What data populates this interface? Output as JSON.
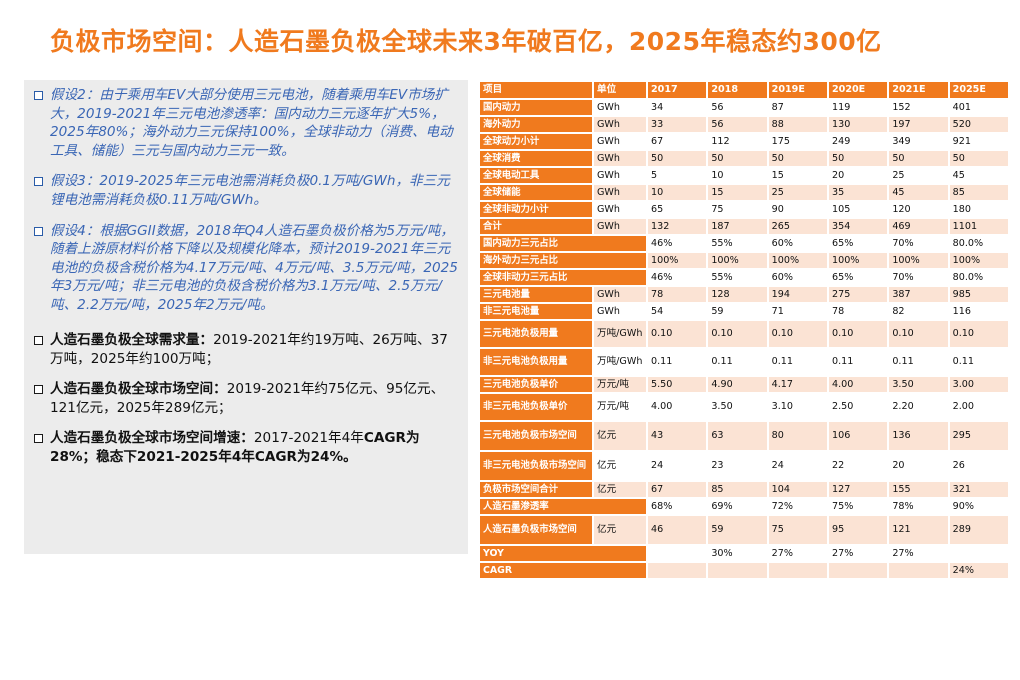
{
  "title": "负极市场空间：人造石墨负极全球未来3年破百亿，2025年稳态约300亿",
  "left": {
    "assumptions": [
      "假设2：由于乘用车EV大部分使用三元电池，随着乘用车EV市场扩大，2019-2021年三元电池渗透率：国内动力三元逐年扩大5%，2025年80%；海外动力三元保持100%，全球非动力（消费、电动工具、储能）三元与国内动力三元一致。",
      "假设3：2019-2025年三元电池需消耗负极0.1万吨/GWh，非三元锂电池需消耗负极0.11万吨/GWh。",
      "假设4：根据GGII数据，2018年Q4人造石墨负极价格为5万元/吨，随着上游原材料价格下降以及规模化降本，预计2019-2021年三元电池的负极含税价格为4.17万元/吨、4万元/吨、3.5万元/吨，2025年3万元/吨；非三元电池的负极含税价格为3.1万元/吨、2.5万元/吨、2.2万元/吨，2025年2万元/吨。"
    ],
    "conclusions": [
      {
        "bold": "人造石墨负极全球需求量：",
        "text": "2019-2021年约19万吨、26万吨、37万吨，2025年约100万吨；"
      },
      {
        "bold": "人造石墨负极全球市场空间：",
        "text": "2019-2021年约75亿元、95亿元、121亿元，2025年289亿元；"
      },
      {
        "bold": "人造石墨负极全球市场空间增速：",
        "text": "2017-2021年4年",
        "bold2": "CAGR为28%；稳态下2021-2025年4年CAGR为24%。"
      }
    ]
  },
  "table": {
    "headers": [
      "项目",
      "单位",
      "2017",
      "2018",
      "2019E",
      "2020E",
      "2021E",
      "2025E"
    ],
    "rows": [
      {
        "cells": [
          "国内动力",
          "GWh",
          "34",
          "56",
          "87",
          "119",
          "152",
          "401"
        ],
        "h": "norm"
      },
      {
        "cells": [
          "海外动力",
          "GWh",
          "33",
          "56",
          "88",
          "130",
          "197",
          "520"
        ],
        "h": "norm"
      },
      {
        "cells": [
          "全球动力小计",
          "GWh",
          "67",
          "112",
          "175",
          "249",
          "349",
          "921"
        ],
        "h": "norm"
      },
      {
        "cells": [
          "全球消费",
          "GWh",
          "50",
          "50",
          "50",
          "50",
          "50",
          "50"
        ],
        "h": "norm"
      },
      {
        "cells": [
          "全球电动工具",
          "GWh",
          "5",
          "10",
          "15",
          "20",
          "25",
          "45"
        ],
        "h": "norm"
      },
      {
        "cells": [
          "全球储能",
          "GWh",
          "10",
          "15",
          "25",
          "35",
          "45",
          "85"
        ],
        "h": "norm"
      },
      {
        "cells": [
          "全球非动力小计",
          "GWh",
          "65",
          "75",
          "90",
          "105",
          "120",
          "180"
        ],
        "h": "norm"
      },
      {
        "cells": [
          "合计",
          "GWh",
          "132",
          "187",
          "265",
          "354",
          "469",
          "1101"
        ],
        "h": "norm"
      },
      {
        "cells": [
          "国内动力三元占比",
          "",
          "46%",
          "55%",
          "60%",
          "65%",
          "70%",
          "80.0%"
        ],
        "h": "norm",
        "span": true
      },
      {
        "cells": [
          "海外动力三元占比",
          "",
          "100%",
          "100%",
          "100%",
          "100%",
          "100%",
          "100%"
        ],
        "h": "norm",
        "span": true
      },
      {
        "cells": [
          "全球非动力三元占比",
          "",
          "46%",
          "55%",
          "60%",
          "65%",
          "70%",
          "80.0%"
        ],
        "h": "norm",
        "span": true
      },
      {
        "cells": [
          "三元电池量",
          "GWh",
          "78",
          "128",
          "194",
          "275",
          "387",
          "985"
        ],
        "h": "norm"
      },
      {
        "cells": [
          "非三元电池量",
          "GWh",
          "54",
          "59",
          "71",
          "78",
          "82",
          "116"
        ],
        "h": "norm"
      },
      {
        "cells": [
          "三元电池负极用量",
          "万吨/GWh",
          "0.10",
          "0.10",
          "0.10",
          "0.10",
          "0.10",
          "0.10"
        ],
        "h": "tall"
      },
      {
        "cells": [
          "非三元电池负极用量",
          "万吨/GWh",
          "0.11",
          "0.11",
          "0.11",
          "0.11",
          "0.11",
          "0.11"
        ],
        "h": "tall"
      },
      {
        "cells": [
          "三元电池负极单价",
          "万元/吨",
          "5.50",
          "4.90",
          "4.17",
          "4.00",
          "3.50",
          "3.00"
        ],
        "h": "norm"
      },
      {
        "cells": [
          "非三元电池负极单价",
          "万元/吨",
          "4.00",
          "3.50",
          "3.10",
          "2.50",
          "2.20",
          "2.00"
        ],
        "h": "tall"
      },
      {
        "cells": [
          "三元电池负极市场空间",
          "亿元",
          "43",
          "63",
          "80",
          "106",
          "136",
          "295"
        ],
        "h": "mid"
      },
      {
        "cells": [
          "非三元电池负极市场空间",
          "亿元",
          "24",
          "23",
          "24",
          "22",
          "20",
          "26"
        ],
        "h": "mid"
      },
      {
        "cells": [
          "负极市场空间合计",
          "亿元",
          "67",
          "85",
          "104",
          "127",
          "155",
          "321"
        ],
        "h": "norm"
      },
      {
        "cells": [
          "人造石墨渗透率",
          "",
          "68%",
          "69%",
          "72%",
          "75%",
          "78%",
          "90%"
        ],
        "h": "norm",
        "span": true
      },
      {
        "cells": [
          "人造石墨负极市场空间",
          "亿元",
          "46",
          "59",
          "75",
          "95",
          "121",
          "289"
        ],
        "h": "mid"
      },
      {
        "cells": [
          "YOY",
          "",
          "",
          "30%",
          "27%",
          "27%",
          "27%",
          ""
        ],
        "h": "norm",
        "span": true
      },
      {
        "cells": [
          "CAGR",
          "",
          "",
          "",
          "",
          "",
          "",
          "24%"
        ],
        "h": "norm",
        "span": true
      }
    ]
  }
}
